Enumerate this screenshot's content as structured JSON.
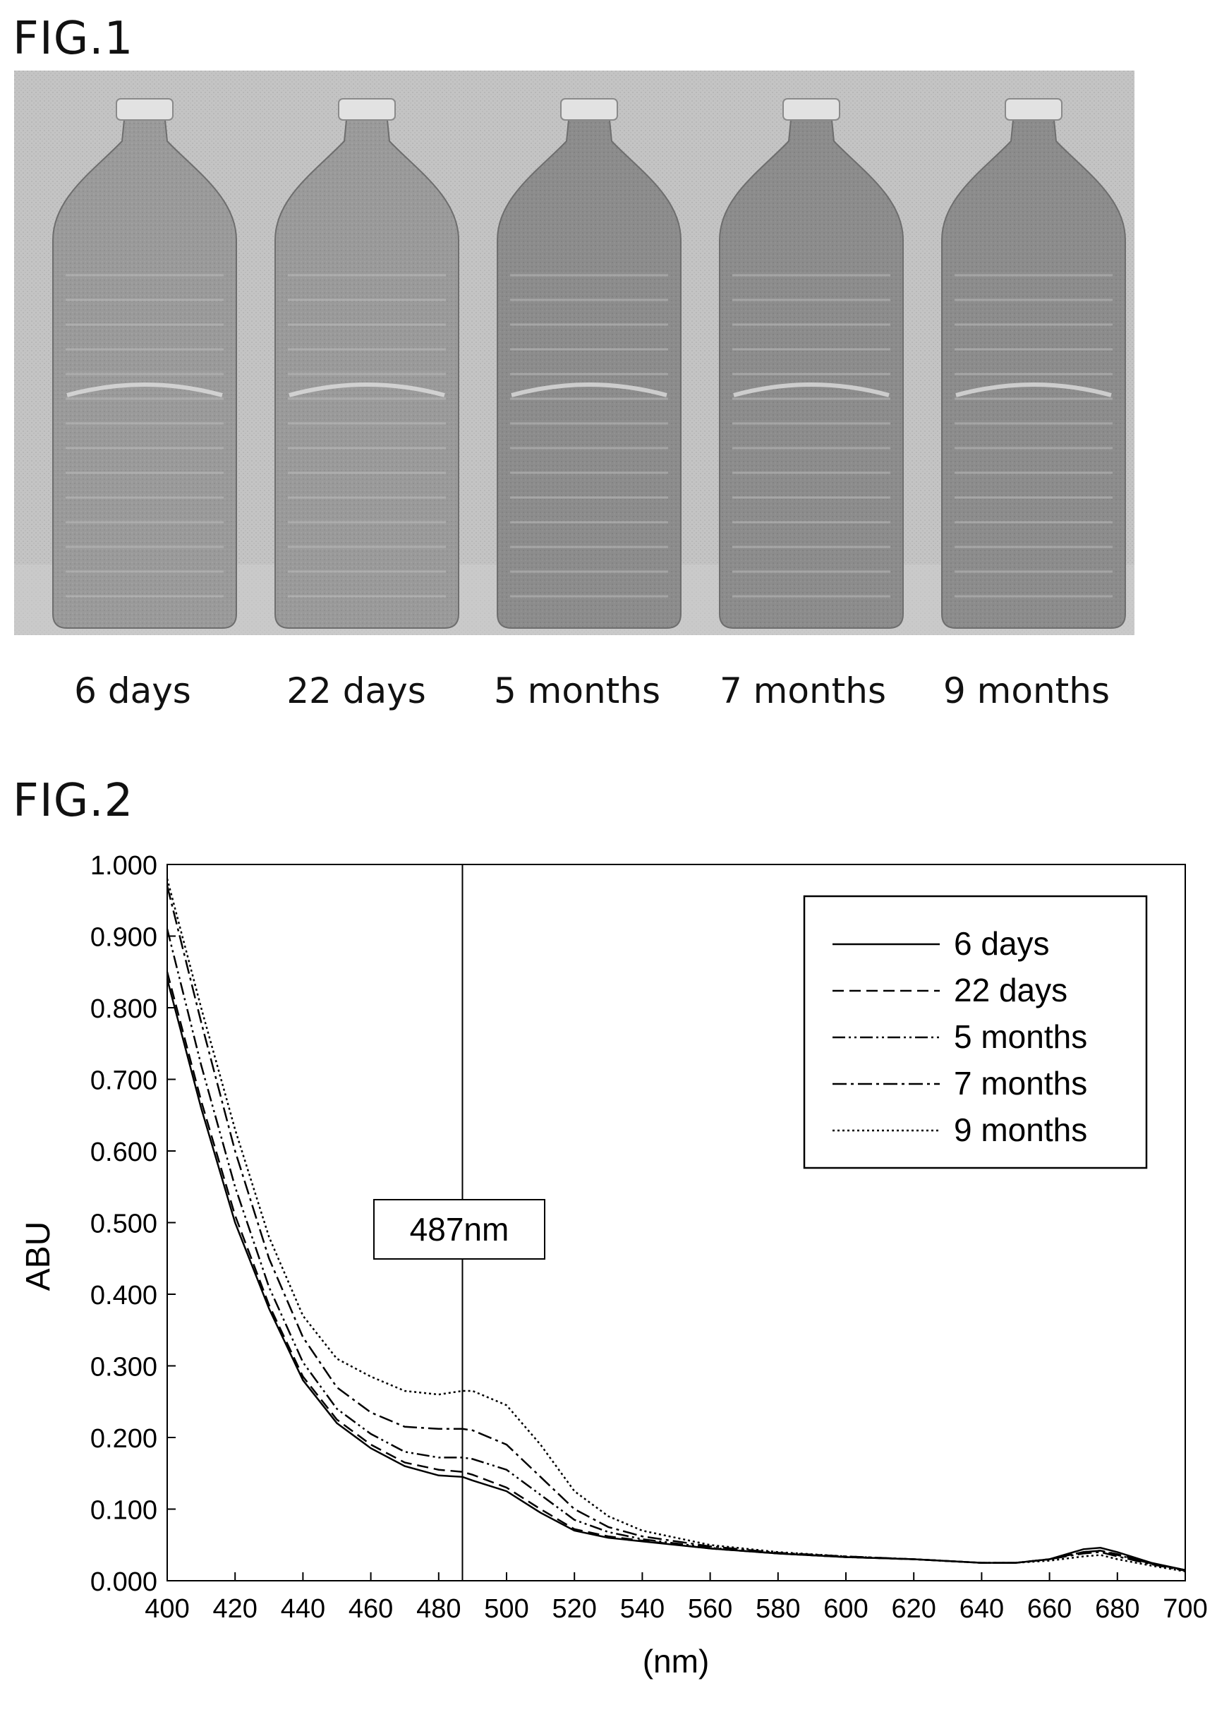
{
  "figure1": {
    "title": "FIG.1",
    "bottle_labels": [
      "6 days",
      "22 days",
      "5 months",
      "7 months",
      "9 months"
    ]
  },
  "figure2": {
    "title": "FIG.2",
    "annotation": "487nm"
  },
  "chart_data": {
    "type": "line",
    "title": "",
    "xlabel": "(nm)",
    "ylabel": "ABU",
    "xlim": [
      400,
      700
    ],
    "ylim": [
      0,
      1
    ],
    "x_ticks": [
      400,
      420,
      440,
      460,
      480,
      500,
      520,
      540,
      560,
      580,
      600,
      620,
      640,
      660,
      680,
      700
    ],
    "y_ticks": [
      "0.000",
      "0.100",
      "0.200",
      "0.300",
      "0.400",
      "0.500",
      "0.600",
      "0.700",
      "0.800",
      "0.900",
      "1.000"
    ],
    "grid": false,
    "legend_position": "top-right",
    "marker_line": {
      "x": 487,
      "label": "487nm"
    },
    "x": [
      400,
      410,
      420,
      430,
      440,
      450,
      460,
      470,
      480,
      487,
      490,
      500,
      510,
      520,
      530,
      540,
      560,
      580,
      600,
      620,
      640,
      650,
      660,
      670,
      675,
      680,
      690,
      700
    ],
    "series": [
      {
        "name": "6 days",
        "dash": "none",
        "values": [
          0.84,
          0.66,
          0.5,
          0.38,
          0.28,
          0.22,
          0.185,
          0.16,
          0.147,
          0.145,
          0.14,
          0.125,
          0.095,
          0.07,
          0.06,
          0.055,
          0.045,
          0.038,
          0.033,
          0.03,
          0.025,
          0.025,
          0.03,
          0.044,
          0.046,
          0.04,
          0.025,
          0.015
        ]
      },
      {
        "name": "22 days",
        "dash": "16,8",
        "values": [
          0.85,
          0.67,
          0.51,
          0.385,
          0.285,
          0.225,
          0.19,
          0.165,
          0.155,
          0.152,
          0.148,
          0.13,
          0.1,
          0.072,
          0.062,
          0.056,
          0.045,
          0.038,
          0.033,
          0.03,
          0.025,
          0.025,
          0.03,
          0.04,
          0.042,
          0.037,
          0.024,
          0.015
        ]
      },
      {
        "name": "5 months",
        "dash": "18,5,3,5,3,5",
        "values": [
          0.91,
          0.72,
          0.55,
          0.41,
          0.305,
          0.24,
          0.205,
          0.18,
          0.172,
          0.172,
          0.17,
          0.155,
          0.12,
          0.085,
          0.068,
          0.058,
          0.046,
          0.038,
          0.033,
          0.03,
          0.025,
          0.025,
          0.03,
          0.04,
          0.042,
          0.036,
          0.024,
          0.015
        ]
      },
      {
        "name": "7 months",
        "dash": "20,6,4,6",
        "values": [
          0.97,
          0.78,
          0.6,
          0.45,
          0.34,
          0.27,
          0.235,
          0.215,
          0.212,
          0.212,
          0.21,
          0.19,
          0.145,
          0.1,
          0.075,
          0.062,
          0.048,
          0.039,
          0.034,
          0.03,
          0.025,
          0.025,
          0.03,
          0.038,
          0.04,
          0.034,
          0.023,
          0.014
        ]
      },
      {
        "name": "9 months",
        "dash": "3,4",
        "values": [
          0.98,
          0.8,
          0.63,
          0.48,
          0.37,
          0.31,
          0.285,
          0.265,
          0.26,
          0.265,
          0.265,
          0.245,
          0.19,
          0.125,
          0.09,
          0.07,
          0.05,
          0.04,
          0.034,
          0.03,
          0.025,
          0.025,
          0.028,
          0.034,
          0.036,
          0.03,
          0.021,
          0.013
        ]
      }
    ]
  }
}
